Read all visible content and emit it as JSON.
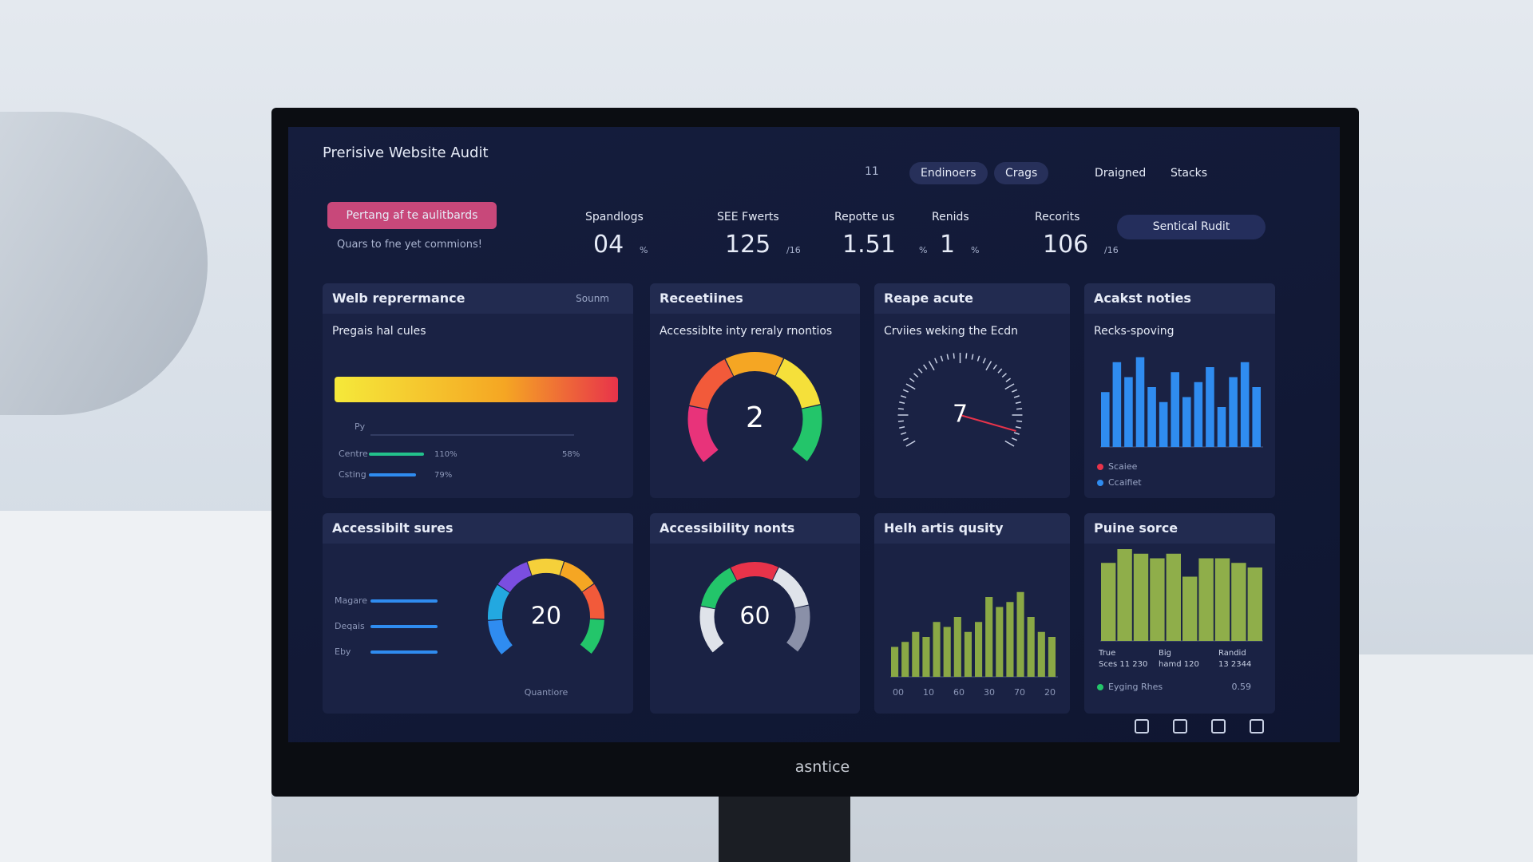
{
  "header": {
    "title": "Prerisive Website Audit",
    "search_count": "11",
    "tabs": [
      "Endinoers",
      "Crags"
    ],
    "nav": [
      "Draigned",
      "Stacks"
    ],
    "button": "Sentical Rudit"
  },
  "banner": {
    "button": "Pertang af te aulitbards",
    "subtitle": "Quars to fne yet commions!"
  },
  "kpis": [
    {
      "label": "Spandlogs",
      "value": "04",
      "unit": "%"
    },
    {
      "label": "SEE Fwerts",
      "value": "125",
      "unit": "/16"
    },
    {
      "label": "Repotte us",
      "value": "1.51",
      "unit": "%"
    },
    {
      "label": "Renids",
      "value": "1",
      "unit": "%"
    },
    {
      "label": "Recorits",
      "value": "106",
      "unit": "/16"
    }
  ],
  "panels": [
    {
      "title": "Welb reprermance",
      "menu": "Sounm",
      "subtitle": "Pregais hal cules",
      "axis_label": "Py",
      "rows": [
        {
          "label": "Centre",
          "value": "110%"
        },
        {
          "label": "Csting",
          "value": "79%"
        }
      ],
      "scale_end": "58%"
    },
    {
      "title": "Receetiines",
      "subtitle": "Accessiblte inty reraly rnontios",
      "gauge": "2"
    },
    {
      "title": "Reape acute",
      "subtitle": "Crviies weking the Ecdn",
      "speedometer": "7"
    },
    {
      "title": "Acakst noties",
      "subtitle": "Recks-spoving",
      "bars": [
        55,
        85,
        70,
        90,
        60,
        45,
        75,
        50,
        65,
        80,
        40,
        70,
        85,
        60
      ],
      "ylim": [
        0,
        100
      ],
      "color": "#2f8cf0",
      "legend": [
        "Scaiee",
        "Ccaifiet"
      ]
    },
    {
      "title": "Accessibilt sures",
      "rows": [
        {
          "label": "Magare"
        },
        {
          "label": "Deqais"
        },
        {
          "label": "Eby"
        }
      ],
      "gauge": "20",
      "caption": "Quantiore"
    },
    {
      "title": "Accessibility nonts",
      "gauge": "60"
    },
    {
      "title": "Helh artis qusity",
      "bars": [
        30,
        35,
        45,
        40,
        55,
        50,
        60,
        45,
        55,
        80,
        70,
        75,
        85,
        60,
        45,
        40
      ],
      "ylim": [
        0,
        100
      ],
      "color": "#8aa845",
      "xlabels": [
        "00",
        "10",
        "60",
        "30",
        "70",
        "20"
      ]
    },
    {
      "title": "Puine sorce",
      "bars": [
        85,
        100,
        95,
        90,
        95,
        70,
        90,
        90,
        85,
        80
      ],
      "ylim": [
        0,
        100
      ],
      "color": "#8fae4a",
      "stats": [
        "True",
        "Sces 11 230",
        "Big",
        "hamd 120",
        "Randid",
        "13 2344"
      ],
      "legend": [
        "Eyging Rhes"
      ],
      "legend_value": "0.59"
    }
  ],
  "monitor_brand": "asntice"
}
